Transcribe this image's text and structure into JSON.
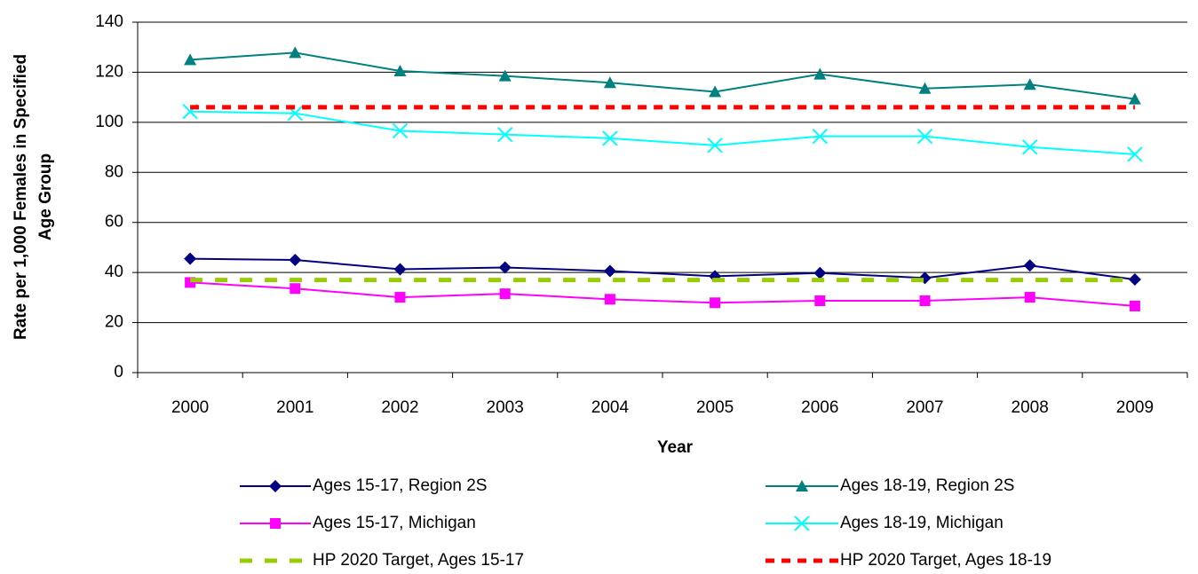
{
  "chart_data": {
    "type": "line",
    "x_label": "Year",
    "y_label": [
      "Rate per 1,000 Females in Specified",
      "Age Group"
    ],
    "categories": [
      "2000",
      "2001",
      "2002",
      "2003",
      "2004",
      "2005",
      "2006",
      "2007",
      "2008",
      "2009"
    ],
    "ylim": [
      0,
      140
    ],
    "yticks": [
      0,
      20,
      40,
      60,
      80,
      100,
      120,
      140
    ],
    "grid": true,
    "series": [
      {
        "name": "Ages 15-17, Region 2S",
        "color": "#000080",
        "marker": "diamond",
        "values": [
          45.5,
          45,
          41.3,
          42,
          40.6,
          38.5,
          39.8,
          37.8,
          42.8,
          37.2
        ]
      },
      {
        "name": "Ages 18-19, Region 2S",
        "color": "#008080",
        "marker": "triangle",
        "values": [
          125,
          127.8,
          120.5,
          118.5,
          115.8,
          112.2,
          119.2,
          113.5,
          115.1,
          109.3
        ]
      },
      {
        "name": "Ages 15-17, Michigan",
        "color": "#ff00ff",
        "marker": "square",
        "values": [
          36,
          33.6,
          30.1,
          31.5,
          29.3,
          27.9,
          28.7,
          28.7,
          30.1,
          26.6
        ]
      },
      {
        "name": "Ages 18-19, Michigan",
        "color": "#00ffff",
        "marker": "x",
        "values": [
          104.3,
          103.6,
          96.6,
          95.1,
          93.6,
          90.8,
          94.4,
          94.4,
          90.1,
          87.2
        ]
      },
      {
        "name": "HP 2020 Target, Ages 15-17",
        "color": "#99cc00",
        "dash": "dashed",
        "values": [
          37,
          37,
          37,
          37,
          37,
          37,
          37,
          37,
          37,
          37
        ]
      },
      {
        "name": "HP 2020 Target, Ages 18-19",
        "color": "#ff0000",
        "dash": "dotted",
        "values": [
          106,
          106,
          106,
          106,
          106,
          106,
          106,
          106,
          106,
          106
        ]
      }
    ]
  }
}
